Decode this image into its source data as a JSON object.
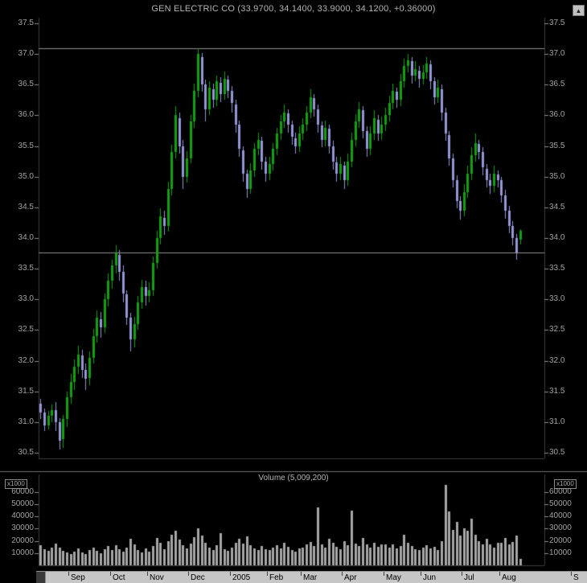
{
  "colors": {
    "background": "#000000",
    "up_candle": "#12a012",
    "down_candle": "#9696d6",
    "volume_bar": "#a6a6a6",
    "grid_line": "#8f8f8f",
    "pane_border": "#3c3c3c",
    "separator": "#707070",
    "axis_text": "#a2a2a2",
    "month_bar_bg": "#c6c6c6",
    "month_text": "#000000"
  },
  "axis": {
    "price_ticks": [
      "37.5",
      "37.0",
      "36.5",
      "36.0",
      "35.5",
      "35.0",
      "34.5",
      "34.0",
      "33.5",
      "33.0",
      "32.5",
      "32.0",
      "31.5",
      "31.0",
      "30.5"
    ],
    "volume_ticks": [
      "60000",
      "50000",
      "40000",
      "30000",
      "20000",
      "10000"
    ]
  },
  "chart_data": {
    "type": "candlestick",
    "title": "GEN ELECTRIC CO (33.9700, 34.1400, 33.9000, 34.1200, +0.36000)",
    "last_quote": {
      "open": 33.97,
      "high": 34.14,
      "low": 33.9,
      "close": 34.12,
      "change": "+0.36000"
    },
    "price_axis_range": [
      30.5,
      37.5
    ],
    "hlines": [
      37.1,
      33.76
    ],
    "volume_title": "Volume (5,009,200)",
    "volume_unit": "x1000",
    "volume_axis_range": [
      0,
      60000
    ],
    "months": [
      {
        "label": "Sep",
        "start_index": 8
      },
      {
        "label": "Oct",
        "start_index": 19
      },
      {
        "label": "Nov",
        "start_index": 29
      },
      {
        "label": "Dec",
        "start_index": 40
      },
      {
        "label": "2005",
        "start_index": 51
      },
      {
        "label": "Feb",
        "start_index": 61
      },
      {
        "label": "Mar",
        "start_index": 70
      },
      {
        "label": "Apr",
        "start_index": 81
      },
      {
        "label": "May",
        "start_index": 92
      },
      {
        "label": "Jun",
        "start_index": 102
      },
      {
        "label": "Jul",
        "start_index": 113
      },
      {
        "label": "Aug",
        "start_index": 123
      },
      {
        "label": "S",
        "start_index": 142
      }
    ],
    "candles_ohlc": [
      [
        31.3,
        31.38,
        31.05,
        31.15
      ],
      [
        31.15,
        31.22,
        30.85,
        30.95
      ],
      [
        30.95,
        31.18,
        30.88,
        31.1
      ],
      [
        31.1,
        31.28,
        31.0,
        31.2
      ],
      [
        31.2,
        31.32,
        30.85,
        31.0
      ],
      [
        31.0,
        31.06,
        30.55,
        30.7
      ],
      [
        30.72,
        31.12,
        30.58,
        31.05
      ],
      [
        31.05,
        31.5,
        30.92,
        31.4
      ],
      [
        31.4,
        31.78,
        31.3,
        31.65
      ],
      [
        31.66,
        32.02,
        31.52,
        31.9
      ],
      [
        31.9,
        32.25,
        31.78,
        32.1
      ],
      [
        32.08,
        32.18,
        31.72,
        31.85
      ],
      [
        31.85,
        31.95,
        31.52,
        31.7
      ],
      [
        31.72,
        32.15,
        31.6,
        32.05
      ],
      [
        32.05,
        32.52,
        31.95,
        32.4
      ],
      [
        32.4,
        32.82,
        32.3,
        32.7
      ],
      [
        32.68,
        32.8,
        32.38,
        32.55
      ],
      [
        32.55,
        33.1,
        32.45,
        33.0
      ],
      [
        33.0,
        33.42,
        32.88,
        33.3
      ],
      [
        33.3,
        33.65,
        33.18,
        33.55
      ],
      [
        33.55,
        33.88,
        33.42,
        33.75
      ],
      [
        33.73,
        33.8,
        33.3,
        33.45
      ],
      [
        33.45,
        33.55,
        32.95,
        33.1
      ],
      [
        33.08,
        33.15,
        32.58,
        32.7
      ],
      [
        32.7,
        32.78,
        32.15,
        32.35
      ],
      [
        32.35,
        32.72,
        32.22,
        32.6
      ],
      [
        32.6,
        33.05,
        32.5,
        32.95
      ],
      [
        32.95,
        33.32,
        32.85,
        33.2
      ],
      [
        33.2,
        33.3,
        32.9,
        33.05
      ],
      [
        33.05,
        33.28,
        32.95,
        33.15
      ],
      [
        33.15,
        33.7,
        33.05,
        33.6
      ],
      [
        33.6,
        34.12,
        33.5,
        34.0
      ],
      [
        34.0,
        34.48,
        33.9,
        34.35
      ],
      [
        34.33,
        34.45,
        34.05,
        34.2
      ],
      [
        34.2,
        34.92,
        34.1,
        34.8
      ],
      [
        34.8,
        35.52,
        34.7,
        35.4
      ],
      [
        35.4,
        36.15,
        35.3,
        36.0
      ],
      [
        35.95,
        36.05,
        35.38,
        35.5
      ],
      [
        35.5,
        35.6,
        34.8,
        35.0
      ],
      [
        35.0,
        35.42,
        34.9,
        35.3
      ],
      [
        35.3,
        36.0,
        35.22,
        35.9
      ],
      [
        35.9,
        36.52,
        35.8,
        36.4
      ],
      [
        36.4,
        37.1,
        36.3,
        37.0
      ],
      [
        36.95,
        37.02,
        36.38,
        36.5
      ],
      [
        36.5,
        36.58,
        35.9,
        36.1
      ],
      [
        36.1,
        36.55,
        36.0,
        36.45
      ],
      [
        36.43,
        36.52,
        36.12,
        36.25
      ],
      [
        36.25,
        36.65,
        36.15,
        36.55
      ],
      [
        36.53,
        36.62,
        36.22,
        36.35
      ],
      [
        36.35,
        36.72,
        36.25,
        36.6
      ],
      [
        36.58,
        36.65,
        36.28,
        36.4
      ],
      [
        36.4,
        36.48,
        36.05,
        36.2
      ],
      [
        36.18,
        36.25,
        35.72,
        35.85
      ],
      [
        35.85,
        35.92,
        35.32,
        35.45
      ],
      [
        35.43,
        35.5,
        34.92,
        35.05
      ],
      [
        35.05,
        35.12,
        34.65,
        34.8
      ],
      [
        34.8,
        35.22,
        34.72,
        35.1
      ],
      [
        35.1,
        35.55,
        35.0,
        35.45
      ],
      [
        35.45,
        35.72,
        35.35,
        35.6
      ],
      [
        35.58,
        35.65,
        35.12,
        35.25
      ],
      [
        35.25,
        35.32,
        34.92,
        35.05
      ],
      [
        35.05,
        35.32,
        34.95,
        35.2
      ],
      [
        35.2,
        35.55,
        35.1,
        35.45
      ],
      [
        35.45,
        35.8,
        35.35,
        35.7
      ],
      [
        35.7,
        36.0,
        35.6,
        35.9
      ],
      [
        35.9,
        36.18,
        35.8,
        36.05
      ],
      [
        36.03,
        36.1,
        35.72,
        35.85
      ],
      [
        35.85,
        35.92,
        35.52,
        35.65
      ],
      [
        35.63,
        35.72,
        35.38,
        35.5
      ],
      [
        35.5,
        35.82,
        35.4,
        35.7
      ],
      [
        35.7,
        35.95,
        35.6,
        35.85
      ],
      [
        35.85,
        36.15,
        35.75,
        36.05
      ],
      [
        36.05,
        36.42,
        35.95,
        36.3
      ],
      [
        36.28,
        36.35,
        35.98,
        36.1
      ],
      [
        36.1,
        36.18,
        35.72,
        35.85
      ],
      [
        35.83,
        35.9,
        35.48,
        35.6
      ],
      [
        35.6,
        35.92,
        35.5,
        35.8
      ],
      [
        35.78,
        35.85,
        35.38,
        35.5
      ],
      [
        35.5,
        35.58,
        35.12,
        35.25
      ],
      [
        35.23,
        35.32,
        34.92,
        35.05
      ],
      [
        35.05,
        35.32,
        34.95,
        35.2
      ],
      [
        35.18,
        35.25,
        34.8,
        34.95
      ],
      [
        34.95,
        35.38,
        34.85,
        35.25
      ],
      [
        35.25,
        35.72,
        35.15,
        35.6
      ],
      [
        35.6,
        36.02,
        35.5,
        35.9
      ],
      [
        35.9,
        36.22,
        35.8,
        36.1
      ],
      [
        36.08,
        36.15,
        35.62,
        35.75
      ],
      [
        35.75,
        35.82,
        35.32,
        35.45
      ],
      [
        35.45,
        35.82,
        35.35,
        35.7
      ],
      [
        35.7,
        36.08,
        35.6,
        35.95
      ],
      [
        35.93,
        36.0,
        35.58,
        35.7
      ],
      [
        35.7,
        35.98,
        35.6,
        35.85
      ],
      [
        35.85,
        36.12,
        35.75,
        36.0
      ],
      [
        36.0,
        36.32,
        35.9,
        36.2
      ],
      [
        36.2,
        36.52,
        36.1,
        36.4
      ],
      [
        36.38,
        36.45,
        36.12,
        36.25
      ],
      [
        36.25,
        36.68,
        36.15,
        36.55
      ],
      [
        36.55,
        36.92,
        36.45,
        36.8
      ],
      [
        36.8,
        37.0,
        36.7,
        36.9
      ],
      [
        36.88,
        36.95,
        36.52,
        36.65
      ],
      [
        36.65,
        36.88,
        36.55,
        36.75
      ],
      [
        36.73,
        36.8,
        36.45,
        36.6
      ],
      [
        36.6,
        36.82,
        36.5,
        36.7
      ],
      [
        36.7,
        36.95,
        36.6,
        36.85
      ],
      [
        36.83,
        36.9,
        36.42,
        36.55
      ],
      [
        36.55,
        36.62,
        36.18,
        36.3
      ],
      [
        36.3,
        36.58,
        36.2,
        36.45
      ],
      [
        36.43,
        36.5,
        35.92,
        36.05
      ],
      [
        36.05,
        36.12,
        35.58,
        35.7
      ],
      [
        35.68,
        35.75,
        35.18,
        35.3
      ],
      [
        35.3,
        35.38,
        34.82,
        34.95
      ],
      [
        34.95,
        35.02,
        34.48,
        34.6
      ],
      [
        34.6,
        34.68,
        34.3,
        34.45
      ],
      [
        34.45,
        34.88,
        34.35,
        34.75
      ],
      [
        34.75,
        35.18,
        34.65,
        35.05
      ],
      [
        35.05,
        35.48,
        34.95,
        35.35
      ],
      [
        35.35,
        35.7,
        35.25,
        35.55
      ],
      [
        35.53,
        35.6,
        35.28,
        35.4
      ],
      [
        35.4,
        35.48,
        35.02,
        35.15
      ],
      [
        35.13,
        35.2,
        34.82,
        34.95
      ],
      [
        34.95,
        35.05,
        34.72,
        34.85
      ],
      [
        34.85,
        35.18,
        34.75,
        35.05
      ],
      [
        35.03,
        35.1,
        34.82,
        34.95
      ],
      [
        34.95,
        35.0,
        34.58,
        34.7
      ],
      [
        34.7,
        34.78,
        34.32,
        34.45
      ],
      [
        34.45,
        34.52,
        34.08,
        34.2
      ],
      [
        34.2,
        34.28,
        33.88,
        34.0
      ],
      [
        34.0,
        34.06,
        33.65,
        33.76
      ],
      [
        33.97,
        34.14,
        33.9,
        34.12
      ]
    ],
    "volume_x1000": [
      16500,
      13200,
      11800,
      14500,
      18000,
      14500,
      12000,
      10500,
      9500,
      11200,
      13800,
      10200,
      9000,
      12500,
      14800,
      11800,
      9600,
      13200,
      15500,
      12800,
      16500,
      13400,
      11000,
      14200,
      21500,
      16800,
      12400,
      10800,
      13600,
      11500,
      15800,
      22400,
      18600,
      13200,
      19500,
      24800,
      28500,
      21000,
      16400,
      13800,
      17500,
      22800,
      30200,
      24600,
      18400,
      14800,
      12600,
      16200,
      26500,
      13400,
      11800,
      14600,
      18200,
      21400,
      17800,
      23600,
      16400,
      13800,
      12200,
      15600,
      13000,
      12400,
      14800,
      16200,
      13600,
      18400,
      15200,
      12800,
      11400,
      13800,
      14200,
      16800,
      19400,
      15600,
      47500,
      17400,
      14800,
      21600,
      18200,
      15400,
      13200,
      19800,
      16400,
      44800,
      17800,
      15600,
      22400,
      16800,
      14400,
      18600,
      15200,
      17400,
      16800,
      14400,
      17200,
      13800,
      15600,
      24800,
      18400,
      15800,
      13400,
      12600,
      14800,
      16400,
      13800,
      15200,
      12800,
      19600,
      65800,
      44200,
      28800,
      35400,
      24400,
      30200,
      28600,
      38400,
      24800,
      19600,
      16800,
      21400,
      17200,
      14800,
      18200,
      18600,
      22400,
      16800,
      19200,
      24600,
      5009
    ]
  }
}
